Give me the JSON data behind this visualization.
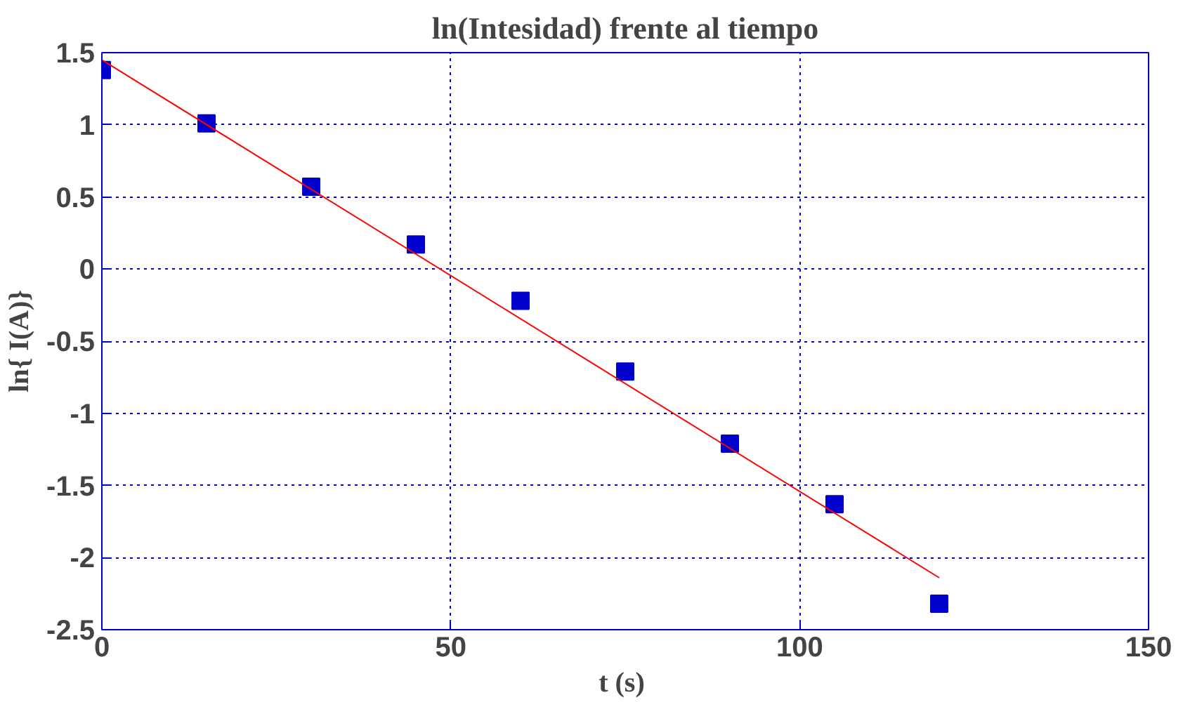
{
  "chart_data": {
    "type": "scatter",
    "title": "ln(Intesidad) frente al tiempo",
    "xlabel": "t  (s)",
    "ylabel": "ln{ I(A)}",
    "series": [
      {
        "color": "#0000cc",
        "marker": "square",
        "x": [
          0,
          15,
          30,
          45,
          60,
          75,
          90,
          105,
          120
        ],
        "values": [
          1.38,
          1.01,
          0.57,
          0.17,
          -0.22,
          -0.71,
          -1.21,
          -1.63,
          -2.32
        ]
      },
      {
        "type": "line",
        "color": "#ff0000",
        "line_style": "solid",
        "x": [
          0,
          120
        ],
        "values": [
          1.45,
          -2.14
        ]
      }
    ],
    "xlim": [
      0,
      150
    ],
    "xticks": [
      0,
      50,
      100,
      150
    ],
    "ylim": [
      -2.5,
      1.5
    ],
    "yticks": [
      -2.5,
      -2,
      -1.5,
      -1,
      -0.5,
      0,
      0.5,
      1,
      1.5
    ],
    "grid": true
  }
}
